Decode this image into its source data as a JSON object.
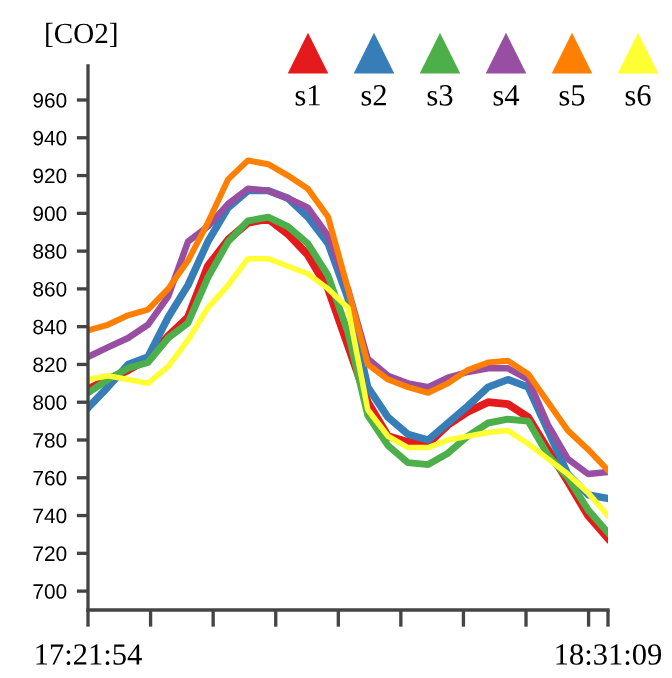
{
  "chart_data": {
    "type": "line",
    "title": "[CO2]",
    "x": [
      17.365,
      17.409,
      17.454,
      17.498,
      17.543,
      17.587,
      17.631,
      17.676,
      17.72,
      17.765,
      17.809,
      17.853,
      17.898,
      17.942,
      17.986,
      18.031,
      18.075,
      18.12,
      18.164,
      18.208,
      18.253,
      18.297,
      18.342,
      18.386,
      18.43,
      18.475,
      18.519
    ],
    "series": [
      {
        "name": "s1",
        "color": "#e41a1c",
        "values": [
          807,
          812,
          817,
          823,
          835,
          845,
          872,
          886,
          895,
          897,
          889,
          878,
          860,
          830,
          800,
          782,
          779,
          778,
          788,
          795,
          800,
          799,
          792,
          775,
          758,
          740,
          728
        ]
      },
      {
        "name": "s2",
        "color": "#377eb8",
        "values": [
          797,
          808,
          820,
          824,
          845,
          862,
          885,
          903,
          912,
          912,
          908,
          898,
          884,
          855,
          808,
          792,
          783,
          780,
          789,
          798,
          808,
          812,
          808,
          785,
          762,
          751,
          749
        ]
      },
      {
        "name": "s3",
        "color": "#4daf4a",
        "values": [
          805,
          812,
          818,
          821,
          834,
          842,
          866,
          885,
          896,
          898,
          893,
          884,
          867,
          837,
          793,
          777,
          768,
          767,
          773,
          782,
          789,
          791,
          790,
          772,
          760,
          743,
          731
        ]
      },
      {
        "name": "s4",
        "color": "#984ea3",
        "values": [
          824,
          829,
          834,
          841,
          856,
          885,
          893,
          905,
          913,
          912,
          908,
          903,
          888,
          860,
          823,
          814,
          810,
          808,
          813,
          816,
          818,
          818,
          812,
          788,
          770,
          762,
          763
        ]
      },
      {
        "name": "s5",
        "color": "#ff7f00",
        "values": [
          838,
          841,
          846,
          849,
          860,
          875,
          895,
          918,
          928,
          926,
          920,
          913,
          898,
          860,
          820,
          812,
          808,
          805,
          810,
          817,
          821,
          822,
          815,
          800,
          785,
          775,
          764
        ]
      },
      {
        "name": "s6",
        "color": "#ffff33",
        "values": [
          812,
          814,
          812,
          810,
          819,
          833,
          850,
          862,
          876,
          876,
          872,
          868,
          860,
          850,
          796,
          782,
          776,
          776,
          780,
          782,
          784,
          785,
          778,
          770,
          762,
          752,
          740
        ]
      }
    ],
    "xlim": [
      17.365,
      18.5192
    ],
    "xticks": [
      {
        "value": 17.365,
        "label": "17:21:54"
      },
      {
        "value": 17.5039,
        "label": null
      },
      {
        "value": 17.6428,
        "label": null
      },
      {
        "value": 17.7817,
        "label": null
      },
      {
        "value": 17.9206,
        "label": null
      },
      {
        "value": 18.0594,
        "label": null
      },
      {
        "value": 18.1983,
        "label": null
      },
      {
        "value": 18.3372,
        "label": null
      },
      {
        "value": 18.4761,
        "label": null
      },
      {
        "value": 18.5192,
        "label": "18:31:09"
      }
    ],
    "ylim": [
      690,
      978
    ],
    "yticks": [
      700,
      720,
      740,
      760,
      780,
      800,
      820,
      840,
      860,
      880,
      900,
      920,
      940,
      960
    ],
    "grid": false,
    "legend": "top right",
    "marker": "none",
    "line_style": "solid"
  }
}
